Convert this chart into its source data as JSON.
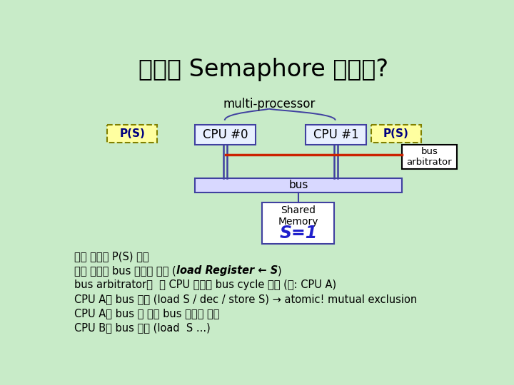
{
  "title": "동시에 Semaphore 액세스?",
  "bg_color": "#c8ebc8",
  "title_fontsize": 24,
  "multi_processor_label": "multi-processor",
  "cpu0_label": "CPU #0",
  "cpu1_label": "CPU #1",
  "ps_label": "P(S)",
  "bus_label": "bus",
  "bus_arb_label": "bus\narbitrator",
  "shared_label": "Shared\nMemory",
  "s_label": "S=1",
  "box_color_cpu": "#e8f0ff",
  "box_edge_cpu": "#4040a0",
  "box_color_ps": "#ffffa0",
  "box_edge_ps": "#808000",
  "box_color_bus": "#d8d8ff",
  "box_edge_bus": "#4040a0",
  "box_color_shared": "#ffffff",
  "box_edge_shared": "#4040a0",
  "box_color_arb": "#ffffff",
  "box_edge_arb": "#000000",
  "line_color_red": "#cc2200",
  "line_color_blue": "#4040a0",
  "brace_color": "#4040a0",
  "text_color": "#000000",
  "s_color": "#2020cc",
  "ps_text_color": "#000080",
  "text_lines_normal": [
    "둘이 동시에 P(S) 수행",
    "둘이 동시에 bus 사용권 요청 (",
    "bus arbitrator가  한 CPU 에게만 bus cycle 허가 (예: CPU A)",
    "CPU A는 bus 사용 (load S / dec / store S) → atomic! mutual exclusion",
    "CPU A가 bus 다 쓰면 bus 사용권 해제",
    "CPU B가 bus 사용 (load  S ...)"
  ],
  "text_line1_italic": "load Register ← S",
  "text_line1_suffix": ")"
}
